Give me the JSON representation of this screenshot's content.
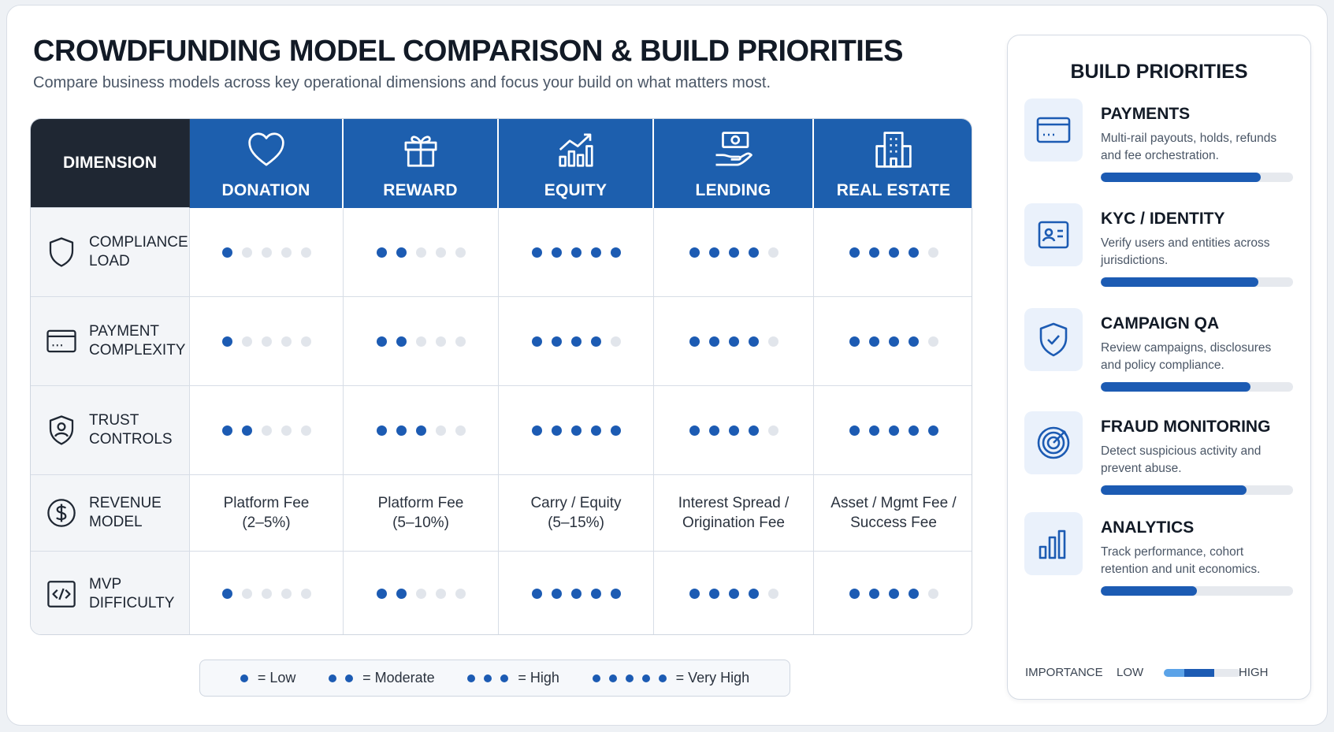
{
  "header": {
    "title": "CROWDFUNDING MODEL COMPARISON & BUILD PRIORITIES",
    "subtitle": "Compare business models across key operational dimensions and focus your build on what matters most."
  },
  "table": {
    "dimension_header": "DIMENSION",
    "models": [
      {
        "label": "DONATION",
        "icon": "heart-icon"
      },
      {
        "label": "REWARD",
        "icon": "gift-icon"
      },
      {
        "label": "EQUITY",
        "icon": "growth-chart-icon"
      },
      {
        "label": "LENDING",
        "icon": "hand-money-icon"
      },
      {
        "label": "REAL ESTATE",
        "icon": "building-icon"
      }
    ],
    "rows": [
      {
        "label": "COMPLIANCE LOAD",
        "icon": "shield-icon",
        "type": "dots",
        "values": [
          1,
          2,
          5,
          4,
          4
        ]
      },
      {
        "label": "PAYMENT COMPLEXITY",
        "icon": "credit-card-icon",
        "type": "dots",
        "values": [
          1,
          2,
          4,
          4,
          4
        ]
      },
      {
        "label": "TRUST CONTROLS",
        "icon": "user-shield-icon",
        "type": "dots",
        "values": [
          2,
          3,
          5,
          4,
          5
        ]
      },
      {
        "label": "REVENUE MODEL",
        "icon": "dollar-icon",
        "type": "text",
        "values": [
          [
            "Platform Fee",
            "(2–5%)"
          ],
          [
            "Platform Fee",
            "(5–10%)"
          ],
          [
            "Carry / Equity",
            "(5–15%)"
          ],
          [
            "Interest Spread /",
            "Origination Fee"
          ],
          [
            "Asset / Mgmt Fee /",
            "Success Fee"
          ]
        ]
      },
      {
        "label": "MVP DIFFICULTY",
        "icon": "code-icon",
        "type": "dots",
        "values": [
          1,
          2,
          5,
          4,
          4
        ]
      }
    ],
    "dot_max": 5
  },
  "legend": [
    {
      "dots": 1,
      "label": "= Low"
    },
    {
      "dots": 2,
      "label": "= Moderate"
    },
    {
      "dots": 3,
      "label": "= High"
    },
    {
      "dots": 5,
      "label": "= Very High"
    }
  ],
  "priorities": {
    "title": "BUILD PRIORITIES",
    "items": [
      {
        "title": "PAYMENTS",
        "desc": "Multi-rail payouts, holds, refunds and fee orchestration.",
        "icon": "credit-card-icon",
        "importance": 0.83
      },
      {
        "title": "KYC / IDENTITY",
        "desc": "Verify users and entities across jurisdictions.",
        "icon": "id-card-icon",
        "importance": 0.82
      },
      {
        "title": "CAMPAIGN QA",
        "desc": "Review campaigns, disclosures and policy compliance.",
        "icon": "shield-check-icon",
        "importance": 0.78
      },
      {
        "title": "FRAUD MONITORING",
        "desc": "Detect suspicious activity and prevent abuse.",
        "icon": "target-icon",
        "importance": 0.76
      },
      {
        "title": "ANALYTICS",
        "desc": "Track performance, cohort retention and unit economics.",
        "icon": "bar-chart-icon",
        "importance": 0.5
      }
    ],
    "importance_label": "IMPORTANCE",
    "low_label": "LOW",
    "high_label": "HIGH"
  },
  "colors": {
    "accent": "#1c5bb3",
    "header_dark": "#1f2733",
    "header_blue": "#1d5fae",
    "dot_off": "#e1e5eb"
  }
}
